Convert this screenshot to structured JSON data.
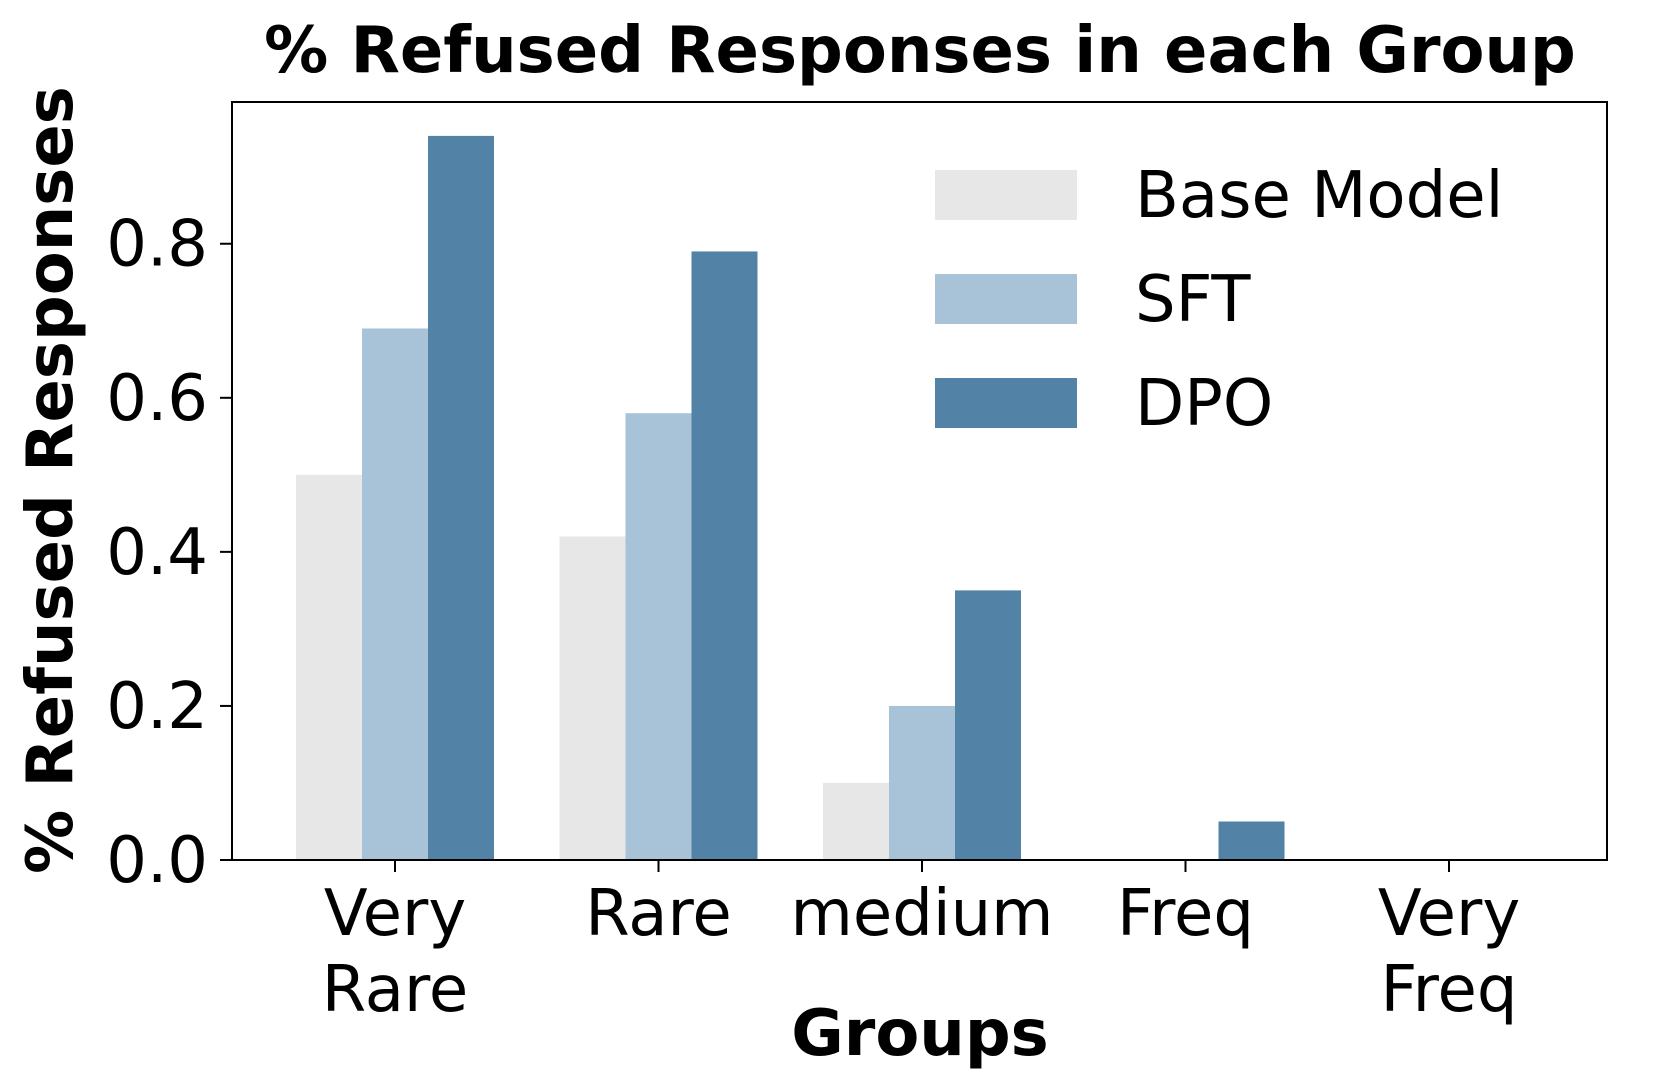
{
  "chart_data": {
    "type": "bar",
    "title": "% Refused Responses in each Group",
    "xlabel": "Groups",
    "ylabel": "% Refused Responses",
    "categories": [
      [
        "Very",
        "Rare"
      ],
      [
        "Rare"
      ],
      [
        "medium"
      ],
      [
        "Freq"
      ],
      [
        "Very",
        "Freq"
      ]
    ],
    "series": [
      {
        "name": "Base Model",
        "color": "#e7e7e7",
        "values": [
          0.5,
          0.42,
          0.1,
          0.0,
          0.0
        ]
      },
      {
        "name": "SFT",
        "color": "#a8c3d8",
        "values": [
          0.69,
          0.58,
          0.2,
          0.0,
          0.0
        ]
      },
      {
        "name": "DPO",
        "color": "#5283a7",
        "values": [
          0.94,
          0.79,
          0.35,
          0.05,
          0.0
        ]
      }
    ],
    "yticks": [
      "0.0",
      "0.2",
      "0.4",
      "0.6",
      "0.8"
    ],
    "ytick_values": [
      0.0,
      0.2,
      0.4,
      0.6,
      0.8
    ],
    "ylim": [
      0,
      0.984
    ],
    "grid": false,
    "legend_position": "top-right"
  }
}
